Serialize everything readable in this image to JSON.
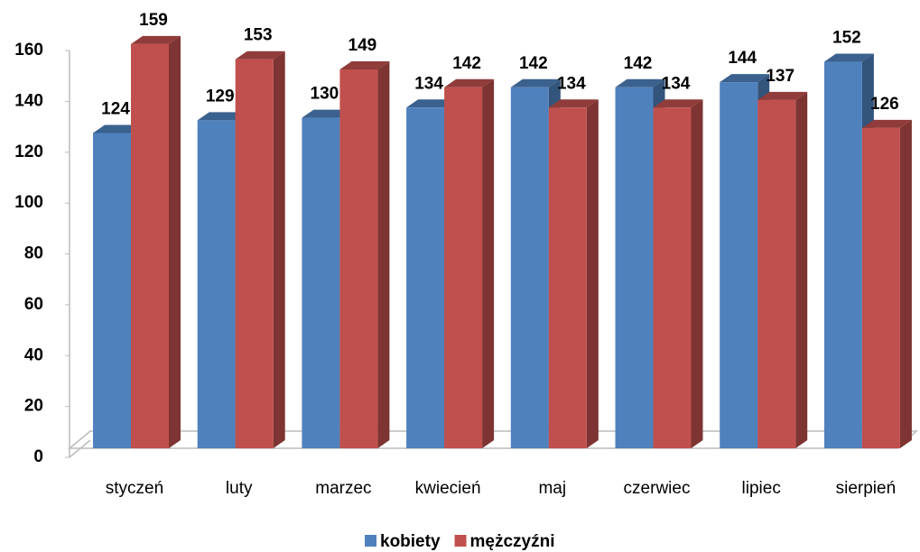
{
  "chart_data": {
    "type": "bar3d",
    "categories": [
      "styczeń",
      "luty",
      "marzec",
      "kwiecień",
      "maj",
      "czerwiec",
      "lipiec",
      "sierpień"
    ],
    "series": [
      {
        "name": "kobiety",
        "color": "#4f81bd",
        "values": [
          124,
          129,
          130,
          134,
          142,
          142,
          144,
          152
        ]
      },
      {
        "name": "mężczyźni",
        "color": "#c0504d",
        "values": [
          159,
          153,
          149,
          142,
          134,
          134,
          137,
          126
        ]
      }
    ],
    "ylim": [
      0,
      160
    ],
    "yticks": [
      0,
      20,
      40,
      60,
      80,
      100,
      120,
      140,
      160
    ],
    "grid": false,
    "legend": "bottom"
  }
}
